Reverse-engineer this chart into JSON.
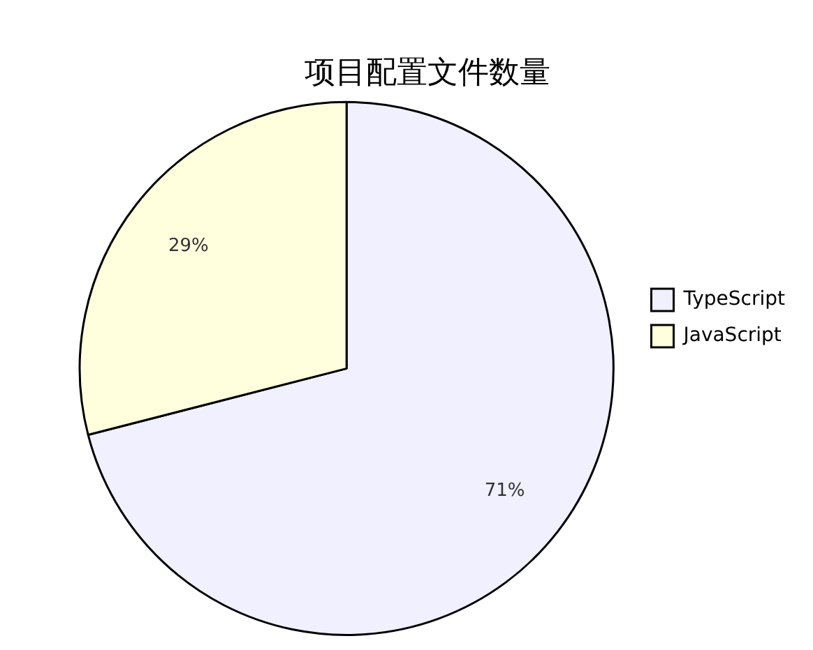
{
  "chart_data": {
    "type": "pie",
    "title": "项目配置文件数量",
    "categories": [
      "TypeScript",
      "JavaScript"
    ],
    "values": [
      71,
      29
    ],
    "colors": [
      "#f0f0ff",
      "#ffffde"
    ],
    "value_labels": [
      "71%",
      "29%"
    ],
    "legend": "right"
  }
}
